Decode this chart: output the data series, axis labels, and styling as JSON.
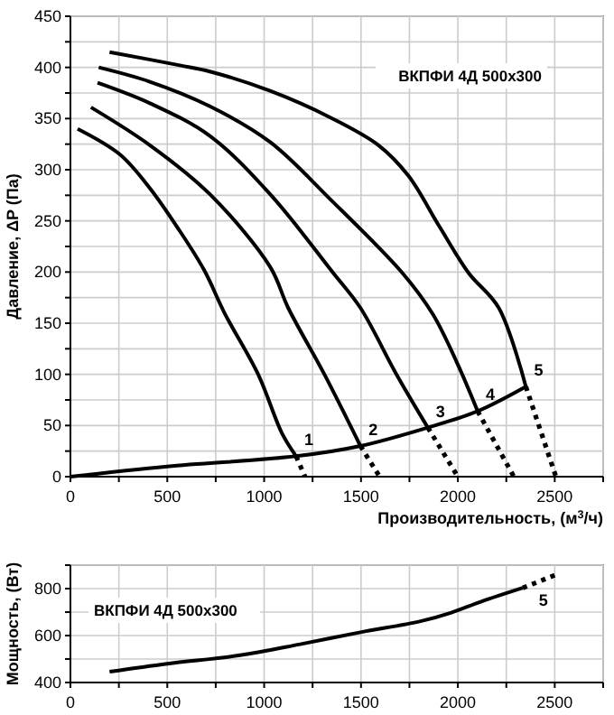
{
  "chart_data": [
    {
      "type": "line",
      "xlabel": "Производительность, (м$^{3}$/ч)",
      "ylabel": "Давление, ΔP (Па)",
      "xlim": [
        0,
        2750
      ],
      "ylim": [
        0,
        450
      ],
      "xticks": [
        0,
        {
          "value": 250,
          "label": null
        },
        500,
        {
          "value": 750,
          "label": null
        },
        1000,
        {
          "value": 1250,
          "label": null
        },
        1500,
        {
          "value": 1750,
          "label": null
        },
        2000,
        {
          "value": 2250,
          "label": null
        },
        2500,
        {
          "value": 2750,
          "label": null
        }
      ],
      "yticks": [
        0,
        {
          "value": 25,
          "label": null
        },
        50,
        {
          "value": 75,
          "label": null
        },
        100,
        {
          "value": 125,
          "label": null
        },
        150,
        {
          "value": 175,
          "label": null
        },
        200,
        {
          "value": 225,
          "label": null
        },
        250,
        {
          "value": 275,
          "label": null
        },
        300,
        {
          "value": 325,
          "label": null
        },
        350,
        {
          "value": 375,
          "label": null
        },
        400,
        {
          "value": 425,
          "label": null
        },
        450
      ],
      "grid": true,
      "marker": "none",
      "series": [
        {
          "color": "#000000",
          "line_style": "solid",
          "x": [
            37,
            255,
            410,
            565,
            690,
            798,
            969,
            1093,
            1165
          ],
          "values": [
            340,
            315,
            282,
            240,
            202,
            159,
            100,
            42,
            20
          ]
        },
        {
          "color": "#000000",
          "line_style": "dotted",
          "x": [
            1165,
            1211
          ],
          "values": [
            20,
            0
          ]
        },
        {
          "color": "#000000",
          "line_style": "solid",
          "x": [
            106,
            410,
            720,
            1031,
            1124,
            1311,
            1497
          ],
          "values": [
            361,
            324,
            276,
            205,
            165,
            100,
            30
          ]
        },
        {
          "color": "#000000",
          "line_style": "dotted",
          "x": [
            1497,
            1596
          ],
          "values": [
            30,
            0
          ]
        },
        {
          "color": "#000000",
          "line_style": "solid",
          "x": [
            140,
            410,
            720,
            1031,
            1357,
            1497,
            1683,
            1845
          ],
          "values": [
            385,
            365,
            333,
            276,
            199,
            165,
            100,
            48
          ]
        },
        {
          "color": "#000000",
          "line_style": "dotted",
          "x": [
            1845,
            2000
          ],
          "values": [
            48,
            0
          ]
        },
        {
          "color": "#000000",
          "line_style": "solid",
          "x": [
            146,
            410,
            720,
            1031,
            1342,
            1714,
            1870,
            1994,
            2102
          ],
          "values": [
            400,
            386,
            362,
            327,
            271,
            199,
            159,
            112,
            64
          ]
        },
        {
          "color": "#000000",
          "line_style": "dotted",
          "x": [
            2102,
            2289
          ],
          "values": [
            64,
            0
          ]
        },
        {
          "color": "#000000",
          "line_style": "solid",
          "x": [
            202,
            565,
            720,
            1031,
            1342,
            1590,
            1745,
            1900,
            2056,
            2211,
            2351
          ],
          "values": [
            415,
            402,
            396,
            377,
            351,
            324,
            294,
            246,
            199,
            165,
            88
          ]
        },
        {
          "color": "#000000",
          "line_style": "dotted",
          "x": [
            2351,
            2506
          ],
          "values": [
            88,
            0
          ]
        },
        {
          "color": "#000000",
          "line_style": "solid",
          "x": [
            0,
            500,
            1165,
            1497,
            1845,
            2102,
            2351
          ],
          "values": [
            0,
            10,
            20,
            30,
            48,
            64,
            88
          ]
        }
      ],
      "annotations": [
        "ВКПФИ  4Д 500x300",
        {
          "text": "1",
          "x": 1165,
          "y": 20
        },
        {
          "text": "2",
          "x": 1497,
          "y": 30
        },
        {
          "text": "3",
          "x": 1845,
          "y": 48
        },
        {
          "text": "4",
          "x": 2102,
          "y": 64
        },
        {
          "text": "5",
          "x": 2351,
          "y": 88
        }
      ]
    },
    {
      "type": "line",
      "ylabel": "Мощность, (Вт)",
      "xlim": [
        0,
        2750
      ],
      "ylim": [
        400,
        900
      ],
      "xticks": [
        0,
        {
          "value": 250,
          "label": null
        },
        500,
        {
          "value": 750,
          "label": null
        },
        1000,
        {
          "value": 1250,
          "label": null
        },
        1500,
        {
          "value": 1750,
          "label": null
        },
        2000,
        {
          "value": 2250,
          "label": null
        },
        2500,
        {
          "value": 2750,
          "label": null
        }
      ],
      "yticks": [
        400,
        {
          "value": 500,
          "label": null
        },
        600,
        {
          "value": 700,
          "label": null
        },
        800,
        {
          "value": 900,
          "label": null
        }
      ],
      "grid": true,
      "marker": "none",
      "series": [
        {
          "color": "#000000",
          "line_style": "solid",
          "x": [
            202,
            500,
            876,
            1186,
            1497,
            1807,
            1963,
            2118,
            2335
          ],
          "values": [
            446,
            480,
            516,
            563,
            614,
            661,
            697,
            744,
            803
          ]
        },
        {
          "color": "#000000",
          "line_style": "dotted",
          "x": [
            2335,
            2506
          ],
          "values": [
            803,
            859
          ]
        }
      ],
      "annotations": [
        "ВКПФИ  4Д 500x300",
        {
          "text": "5",
          "x": 2506,
          "y": 859
        }
      ]
    }
  ]
}
